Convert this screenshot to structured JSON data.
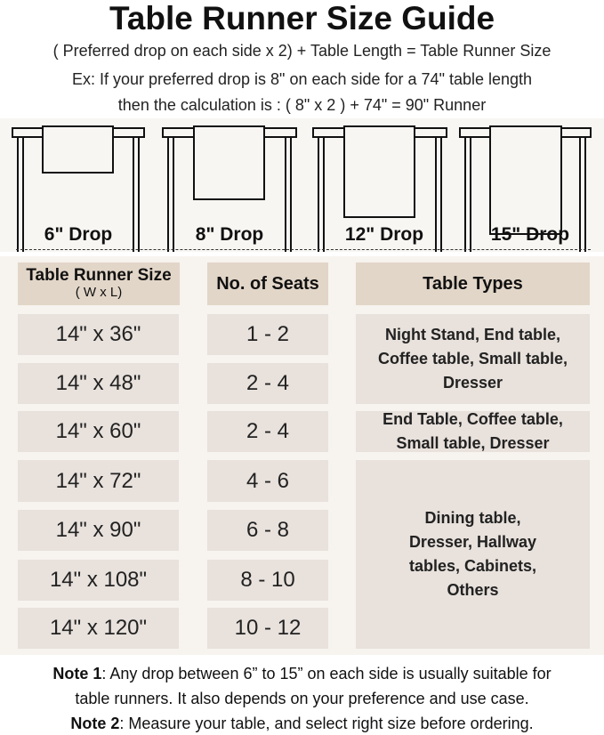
{
  "title": "Table Runner Size Guide",
  "formula": "( Preferred drop on each side x 2) + Table Length = Table Runner Size",
  "example_line1": "Ex: If your preferred drop is 8\" on each side for a 74\" table length",
  "example_line2": "then the calculation is : ( 8\" x 2 ) + 74\" = 90\" Runner",
  "drops": [
    "6\" Drop",
    "8\" Drop",
    "12\" Drop",
    "15\" Drop"
  ],
  "table": {
    "headers": {
      "size": "Table Runner Size",
      "size_sub": "( W x L)",
      "seats": "No. of Seats",
      "types": "Table Types"
    },
    "rows": [
      {
        "size": "14\" x 36\"",
        "seats": "1 - 2"
      },
      {
        "size": "14\" x 48\"",
        "seats": "2 - 4"
      },
      {
        "size": "14\" x 60\"",
        "seats": "2 - 4"
      },
      {
        "size": "14\" x 72\"",
        "seats": "4 - 6"
      },
      {
        "size": "14\" x 90\"",
        "seats": "6 - 8"
      },
      {
        "size": "14\" x 108\"",
        "seats": "8 - 10"
      },
      {
        "size": "14\" x 120\"",
        "seats": "10 - 12"
      }
    ],
    "types": [
      "Night Stand, End table, Coffee table, Small table, Dresser",
      "End Table, Coffee table, Small table, Dresser",
      "Dining table, Dresser, Hallway tables, Cabinets, Others"
    ]
  },
  "notes": {
    "note1_label": "Note 1",
    "note1_text": ": Any drop between 6” to 15” on each side is usually suitable for",
    "note1_text2": "table runners. It also depends on your preference and use case.",
    "note2_label": "Note 2",
    "note2_text": ": Measure your table, and select right size before ordering."
  },
  "colors": {
    "header_cell": "#e2d6c8",
    "body_cell": "#e8e1dc",
    "panel": "#f7f3ef"
  }
}
